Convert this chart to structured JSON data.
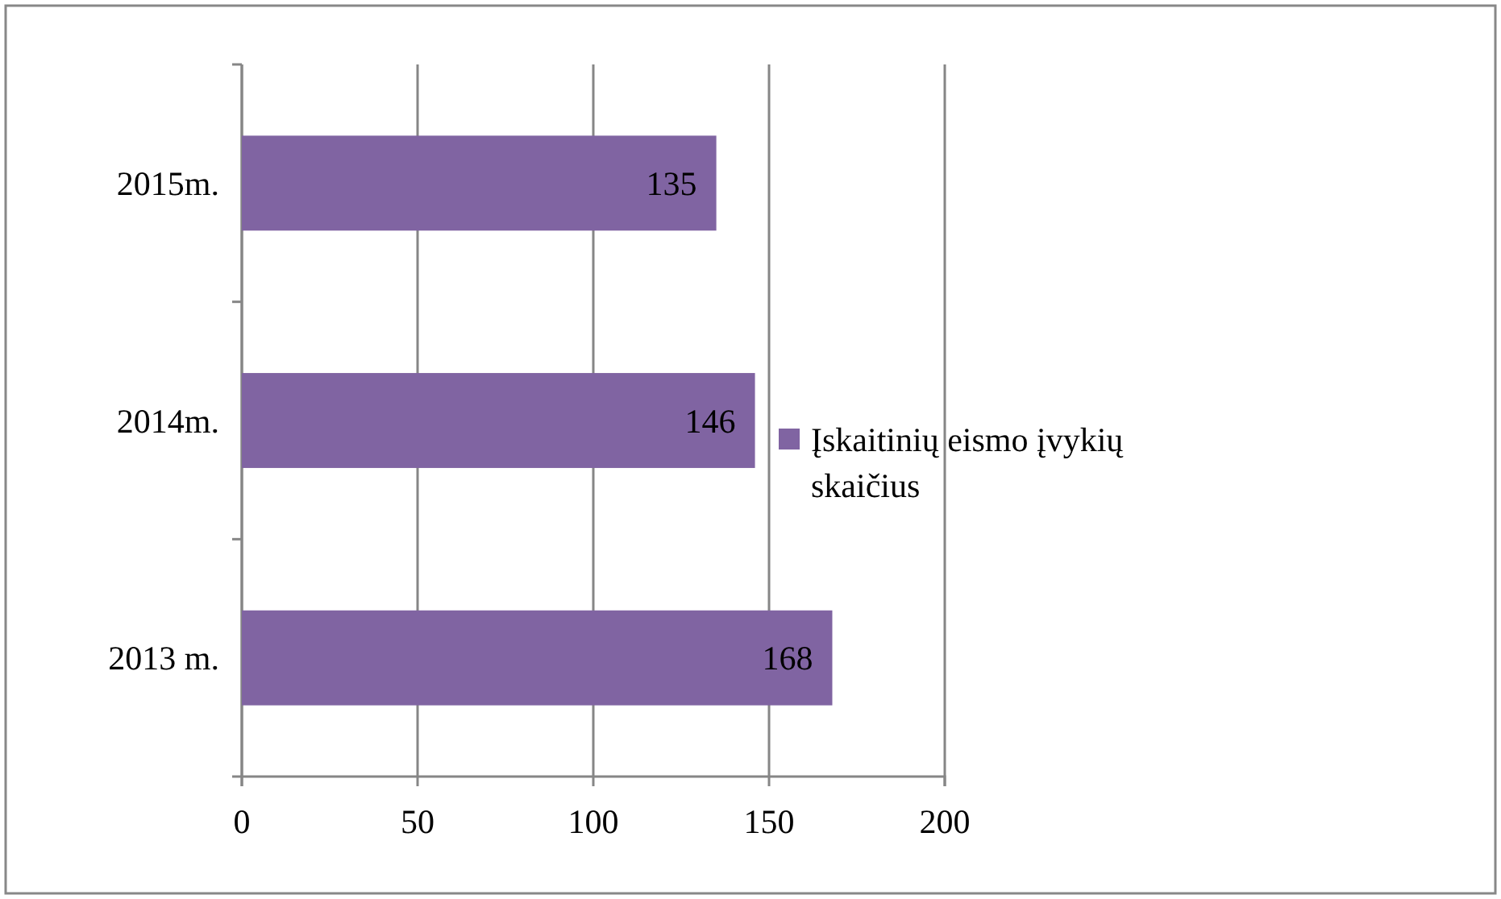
{
  "chart_data": {
    "type": "bar",
    "orientation": "horizontal",
    "categories": [
      "2015m.",
      "2014m.",
      "2013 m."
    ],
    "series": [
      {
        "name": "Įskaitinių eismo įvykių skaičius",
        "color": "#8064a2",
        "values": [
          135,
          146,
          168
        ]
      }
    ],
    "xlim": [
      0,
      200
    ],
    "xticks": [
      0,
      50,
      100,
      150,
      200
    ],
    "grid": "x",
    "legend": "right",
    "data_labels": true
  }
}
